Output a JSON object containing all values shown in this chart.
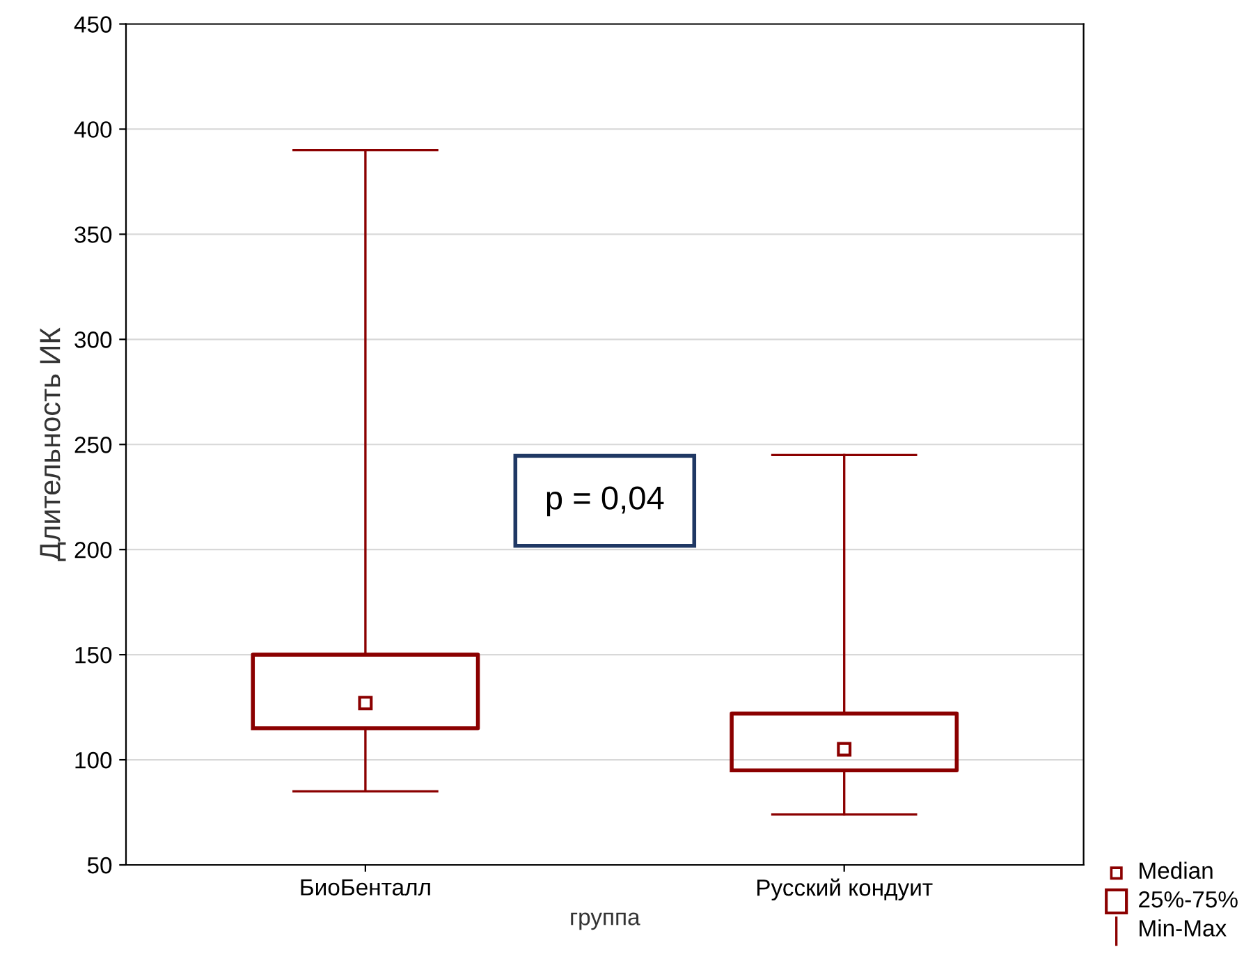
{
  "chart_data": {
    "type": "box",
    "xlabel": "группа",
    "ylabel": "Длительность ИК",
    "categories": [
      "БиоБенталл",
      "Русский кондуит"
    ],
    "boxes": [
      {
        "low": 85,
        "q1": 115,
        "median": 127,
        "q3": 150,
        "high": 390
      },
      {
        "low": 74,
        "q1": 95,
        "median": 105,
        "q3": 122,
        "high": 245
      }
    ],
    "color": "#8b0000",
    "ylim": [
      50,
      450
    ],
    "yticks": [
      50,
      100,
      150,
      200,
      250,
      300,
      350,
      400,
      450
    ],
    "grid": "y",
    "marker": "square",
    "annotations": [
      "p = 0,04",
      "Median",
      "25%-75%",
      "Min-Max"
    ]
  }
}
